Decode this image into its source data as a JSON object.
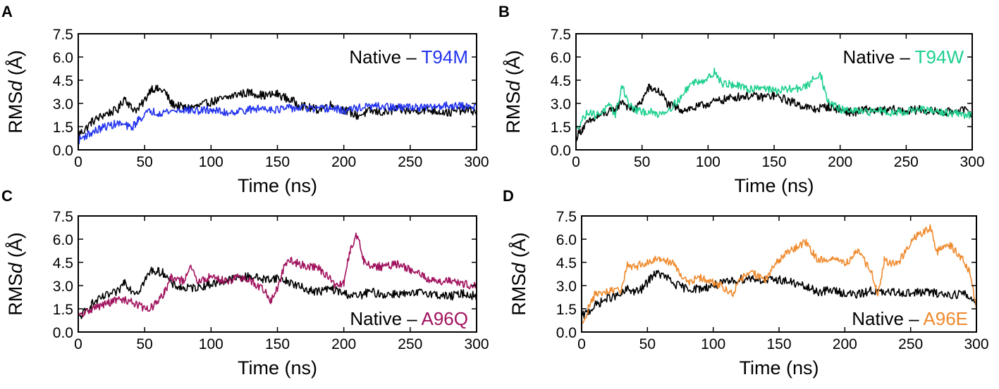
{
  "colors": {
    "native": "#000000",
    "T94M": "#2233ee",
    "T94W": "#1fd08f",
    "A96Q": "#a0125e",
    "A96E": "#ef8a2d"
  },
  "chart_data": [
    {
      "panel": "A",
      "type": "line",
      "title": "",
      "xlabel": "Time (ns)",
      "ylabel_main": "RMS",
      "ylabel_italic": "d",
      "ylabel_unit": " (Å)",
      "xlim": [
        0,
        300
      ],
      "ylim": [
        0,
        7.5
      ],
      "xticks": [
        "0",
        "50",
        "100",
        "150",
        "200",
        "250",
        "300"
      ],
      "yticks": [
        "0.0",
        "1.5",
        "3.0",
        "4.5",
        "6.0",
        "7.5"
      ],
      "legend": {
        "prefix": "Native – ",
        "variant": "T94M",
        "position": "top-right"
      },
      "series": [
        {
          "name": "Native",
          "color_key": "native",
          "x": [
            0,
            5,
            10,
            20,
            30,
            35,
            40,
            45,
            50,
            55,
            60,
            65,
            70,
            80,
            90,
            100,
            110,
            120,
            130,
            140,
            150,
            160,
            170,
            180,
            190,
            200,
            210,
            220,
            230,
            240,
            250,
            260,
            270,
            280,
            290,
            300
          ],
          "y": [
            1.0,
            1.3,
            1.8,
            2.3,
            2.6,
            3.4,
            2.7,
            2.6,
            3.2,
            4.0,
            3.9,
            3.8,
            3.0,
            2.7,
            2.8,
            3.1,
            3.3,
            3.6,
            3.7,
            3.5,
            3.6,
            3.2,
            2.8,
            2.6,
            2.9,
            2.6,
            2.2,
            2.5,
            2.4,
            2.6,
            2.5,
            2.6,
            2.5,
            2.4,
            2.6,
            2.5
          ]
        },
        {
          "name": "T94M",
          "color_key": "T94M",
          "x": [
            0,
            5,
            10,
            20,
            30,
            35,
            40,
            45,
            50,
            55,
            60,
            70,
            80,
            90,
            100,
            110,
            120,
            130,
            140,
            150,
            160,
            170,
            180,
            190,
            200,
            210,
            220,
            230,
            240,
            250,
            260,
            270,
            280,
            290,
            300
          ],
          "y": [
            0.6,
            0.9,
            1.1,
            1.5,
            1.7,
            1.6,
            1.4,
            1.9,
            2.3,
            2.5,
            2.4,
            2.5,
            2.6,
            2.5,
            2.6,
            2.4,
            2.5,
            2.6,
            2.7,
            2.6,
            2.7,
            2.7,
            2.6,
            2.7,
            2.5,
            2.7,
            2.8,
            2.8,
            2.7,
            2.8,
            2.7,
            2.8,
            2.9,
            2.8,
            2.8
          ]
        }
      ]
    },
    {
      "panel": "B",
      "type": "line",
      "title": "",
      "xlabel": "Time (ns)",
      "ylabel_main": "RMS",
      "ylabel_italic": "d",
      "ylabel_unit": " (Å)",
      "xlim": [
        0,
        300
      ],
      "ylim": [
        0,
        7.5
      ],
      "xticks": [
        "0",
        "50",
        "100",
        "150",
        "200",
        "250",
        "300"
      ],
      "yticks": [
        "0.0",
        "1.5",
        "3.0",
        "4.5",
        "6.0",
        "7.5"
      ],
      "legend": {
        "prefix": "Native – ",
        "variant": "T94W",
        "position": "top-right"
      },
      "series": [
        {
          "name": "Native",
          "color_key": "native",
          "x": [
            0,
            5,
            10,
            20,
            30,
            35,
            40,
            45,
            50,
            55,
            60,
            65,
            70,
            80,
            90,
            100,
            110,
            120,
            130,
            140,
            150,
            160,
            170,
            180,
            190,
            200,
            210,
            220,
            230,
            240,
            250,
            260,
            270,
            280,
            290,
            300
          ],
          "y": [
            0.8,
            1.4,
            1.8,
            2.3,
            2.6,
            3.2,
            2.7,
            2.6,
            3.2,
            4.0,
            3.9,
            3.6,
            2.9,
            2.6,
            2.7,
            3.0,
            3.2,
            3.4,
            3.5,
            3.4,
            3.5,
            3.2,
            2.9,
            2.6,
            2.8,
            2.6,
            2.4,
            2.6,
            2.5,
            2.6,
            2.5,
            2.6,
            2.5,
            2.4,
            2.6,
            2.4
          ]
        },
        {
          "name": "T94W",
          "color_key": "T94W",
          "x": [
            0,
            5,
            10,
            15,
            20,
            25,
            30,
            35,
            40,
            45,
            50,
            55,
            60,
            65,
            70,
            80,
            85,
            90,
            100,
            105,
            110,
            120,
            130,
            140,
            150,
            160,
            170,
            175,
            180,
            185,
            190,
            200,
            210,
            220,
            230,
            240,
            250,
            260,
            270,
            280,
            290,
            300
          ],
          "y": [
            1.3,
            2.0,
            2.5,
            2.2,
            2.5,
            2.8,
            2.3,
            4.2,
            2.9,
            2.6,
            2.4,
            2.5,
            2.3,
            2.4,
            2.6,
            3.4,
            4.1,
            4.4,
            4.6,
            5.1,
            4.3,
            4.2,
            3.9,
            4.1,
            3.8,
            3.9,
            4.0,
            4.1,
            4.6,
            5.0,
            3.2,
            2.6,
            2.5,
            2.4,
            2.6,
            2.4,
            2.5,
            2.6,
            2.5,
            2.4,
            2.3,
            2.2
          ]
        }
      ]
    },
    {
      "panel": "C",
      "type": "line",
      "title": "",
      "xlabel": "Time (ns)",
      "ylabel_main": "RMS",
      "ylabel_italic": "d",
      "ylabel_unit": " (Å)",
      "xlim": [
        0,
        300
      ],
      "ylim": [
        0,
        7.5
      ],
      "xticks": [
        "0",
        "50",
        "100",
        "150",
        "200",
        "250",
        "300"
      ],
      "yticks": [
        "0.0",
        "1.5",
        "3.0",
        "4.5",
        "6.0",
        "7.5"
      ],
      "legend": {
        "prefix": "Native – ",
        "variant": "A96Q",
        "position": "bottom-right"
      },
      "series": [
        {
          "name": "Native",
          "color_key": "native",
          "x": [
            0,
            5,
            10,
            20,
            30,
            35,
            40,
            45,
            50,
            55,
            60,
            65,
            70,
            80,
            90,
            100,
            110,
            120,
            130,
            140,
            150,
            160,
            170,
            180,
            190,
            200,
            210,
            220,
            230,
            240,
            250,
            260,
            270,
            280,
            290,
            300
          ],
          "y": [
            0.9,
            1.3,
            1.8,
            2.3,
            2.6,
            3.3,
            2.7,
            2.6,
            3.3,
            4.0,
            3.9,
            3.8,
            3.1,
            2.8,
            2.9,
            3.1,
            3.3,
            3.5,
            3.6,
            3.4,
            3.5,
            3.2,
            2.8,
            2.6,
            2.8,
            2.5,
            2.3,
            2.6,
            2.4,
            2.5,
            2.4,
            2.6,
            2.4,
            2.3,
            2.5,
            2.3
          ]
        },
        {
          "name": "A96Q",
          "color_key": "A96Q",
          "x": [
            0,
            5,
            10,
            20,
            30,
            40,
            50,
            55,
            60,
            65,
            70,
            80,
            85,
            90,
            100,
            110,
            120,
            130,
            140,
            145,
            150,
            155,
            160,
            170,
            180,
            190,
            195,
            200,
            205,
            210,
            215,
            220,
            230,
            240,
            250,
            260,
            270,
            280,
            290,
            300
          ],
          "y": [
            1.0,
            1.2,
            1.5,
            1.8,
            2.1,
            2.0,
            1.5,
            1.6,
            1.9,
            2.6,
            3.5,
            3.3,
            4.2,
            3.2,
            3.6,
            3.3,
            3.5,
            3.3,
            2.7,
            2.0,
            2.8,
            4.2,
            4.6,
            4.3,
            4.2,
            3.4,
            2.9,
            3.2,
            5.4,
            6.3,
            4.6,
            4.3,
            4.2,
            4.4,
            4.0,
            3.6,
            3.2,
            3.4,
            3.1,
            3.0
          ]
        }
      ]
    },
    {
      "panel": "D",
      "type": "line",
      "title": "",
      "xlabel": "Time (ns)",
      "ylabel_main": "RMS",
      "ylabel_italic": "d",
      "ylabel_unit": " (Å)",
      "xlim": [
        0,
        300
      ],
      "ylim": [
        0,
        7.5
      ],
      "xticks": [
        "0",
        "50",
        "100",
        "150",
        "200",
        "250",
        "300"
      ],
      "yticks": [
        "0.0",
        "1.5",
        "3.0",
        "4.5",
        "6.0",
        "7.5"
      ],
      "legend": {
        "prefix": "Native – ",
        "variant": "A96E",
        "position": "bottom-right"
      },
      "series": [
        {
          "name": "Native",
          "color_key": "native",
          "x": [
            0,
            5,
            10,
            20,
            30,
            35,
            40,
            45,
            50,
            55,
            60,
            65,
            70,
            80,
            90,
            100,
            110,
            120,
            130,
            140,
            150,
            160,
            170,
            180,
            190,
            200,
            210,
            220,
            230,
            240,
            250,
            260,
            270,
            280,
            290,
            300
          ],
          "y": [
            1.0,
            1.3,
            1.7,
            2.2,
            2.4,
            2.8,
            2.6,
            2.7,
            3.2,
            3.8,
            3.7,
            3.5,
            3.1,
            2.8,
            2.8,
            3.0,
            3.2,
            3.4,
            3.5,
            3.3,
            3.4,
            3.2,
            2.9,
            2.6,
            2.7,
            2.5,
            2.4,
            2.7,
            2.5,
            2.6,
            2.5,
            2.6,
            2.5,
            2.4,
            2.5,
            1.9
          ]
        },
        {
          "name": "A96E",
          "color_key": "A96E",
          "x": [
            0,
            5,
            10,
            20,
            30,
            35,
            40,
            50,
            60,
            70,
            80,
            90,
            100,
            110,
            115,
            120,
            130,
            140,
            150,
            160,
            170,
            175,
            180,
            190,
            200,
            210,
            220,
            225,
            230,
            240,
            250,
            255,
            260,
            265,
            270,
            280,
            290,
            295,
            300
          ],
          "y": [
            0.5,
            1.5,
            2.4,
            2.6,
            2.7,
            4.4,
            4.2,
            4.5,
            4.8,
            4.4,
            3.2,
            3.5,
            3.2,
            2.8,
            2.4,
            3.4,
            3.8,
            3.4,
            4.7,
            5.3,
            5.8,
            5.2,
            4.6,
            4.8,
            4.4,
            5.2,
            3.9,
            2.4,
            4.6,
            4.4,
            5.7,
            6.3,
            6.4,
            6.8,
            5.2,
            5.6,
            4.7,
            3.8,
            1.6
          ]
        }
      ]
    }
  ]
}
